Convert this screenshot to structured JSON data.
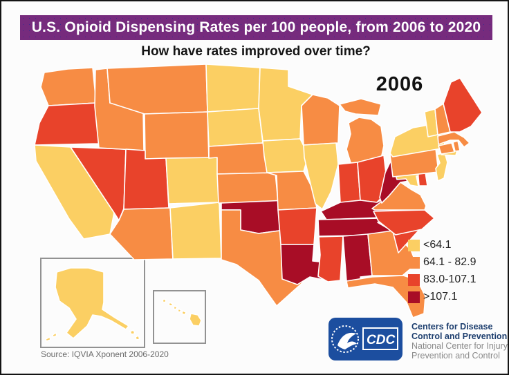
{
  "banner": {
    "title": "U.S. Opioid Dispensing Rates per 100 people, from 2006 to 2020",
    "bg_color": "#762B7D"
  },
  "subtitle": "How have rates improved over time?",
  "year_label": "2006",
  "legend": {
    "items": [
      {
        "label": "<64.1",
        "color": "#FBCF63"
      },
      {
        "label": "64.1 - 82.9",
        "color": "#F78C44"
      },
      {
        "label": "83.0-107.1",
        "color": "#E8432B"
      },
      {
        "label": ">107.1",
        "color": "#A80D26"
      }
    ]
  },
  "source_note": "Source: IQVIA Xponent 2006-2020",
  "cdc_logo": {
    "acronym": "CDC",
    "org_line1": "Centers for Disease",
    "org_line2": "Control and Prevention",
    "org_line3": "National Center for Injury",
    "org_line4": "Prevention and Control",
    "logo_bg_color": "#1C4E9F"
  },
  "map_data": {
    "type": "choropleth",
    "region": "United States",
    "year_shown": "2006",
    "unit": "opioid dispensing rate per 100 people",
    "category_labels": {
      "low": "<64.1",
      "mid": "64.1 - 82.9",
      "high": "83.0-107.1",
      "highest": ">107.1"
    },
    "palette": {
      "low": "#FBCF63",
      "mid": "#F78C44",
      "high": "#E8432B",
      "highest": "#A80D26"
    },
    "states": {
      "WA": "mid",
      "OR": "high",
      "CA": "low",
      "NV": "high",
      "ID": "mid",
      "MT": "mid",
      "WY": "mid",
      "UT": "high",
      "CO": "low",
      "AZ": "mid",
      "NM": "low",
      "ND": "low",
      "SD": "low",
      "NE": "mid",
      "KS": "mid",
      "OK": "highest",
      "TX": "mid",
      "MN": "low",
      "IA": "low",
      "MO": "mid",
      "AR": "high",
      "LA": "highest",
      "WI": "mid",
      "IL": "low",
      "MI": "mid",
      "IN": "high",
      "OH": "high",
      "KY": "highest",
      "TN": "highest",
      "MS": "high",
      "AL": "highest",
      "GA": "mid",
      "FL": "mid",
      "SC": "high",
      "NC": "high",
      "VA": "mid",
      "WV": "highest",
      "MD": "low",
      "DE": "high",
      "PA": "mid",
      "NJ": "low",
      "NY": "low",
      "CT": "mid",
      "RI": "mid",
      "MA": "mid",
      "VT": "low",
      "NH": "mid",
      "ME": "high",
      "AK": "low",
      "HI": "low"
    }
  }
}
